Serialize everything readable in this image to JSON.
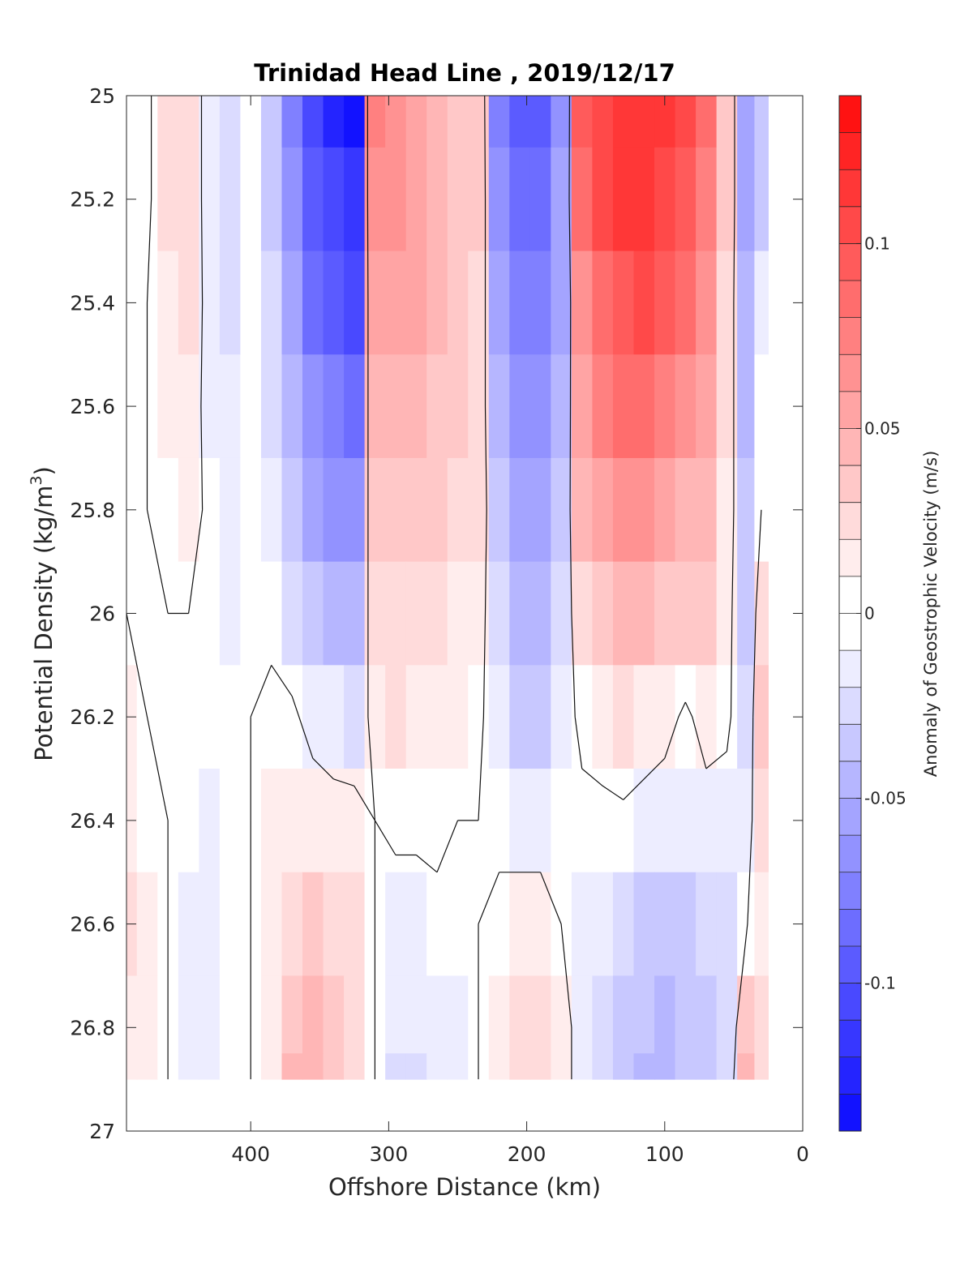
{
  "chart_data": {
    "type": "heatmap",
    "title": "Trinidad Head Line , 2019/12/17",
    "xlabel": "Offshore Distance (km)",
    "ylabel_main": "Potential Density (kg/m",
    "ylabel_sup": "3",
    "ylabel_close": ")",
    "x_axis_reversed": true,
    "xlim": [
      490,
      0
    ],
    "ylim": [
      27,
      25
    ],
    "y_axis_reversed": true,
    "x_ticks": [
      "400",
      "300",
      "200",
      "100",
      "0"
    ],
    "x_tick_values": [
      400,
      300,
      200,
      100,
      0
    ],
    "y_ticks": [
      "25",
      "25.2",
      "25.4",
      "25.6",
      "25.8",
      "26",
      "26.2",
      "26.4",
      "26.6",
      "26.8",
      "27"
    ],
    "y_tick_values": [
      25,
      25.2,
      25.4,
      25.6,
      25.8,
      26,
      26.2,
      26.4,
      26.6,
      26.8,
      27
    ],
    "colorbar": {
      "label": "Anomaly of Geostrophic Velocity (m/s)",
      "range": [
        -0.14,
        0.14
      ],
      "step": 0.01,
      "ticks": [
        "0.1",
        "0.05",
        "0",
        "-0.05",
        "-0.1"
      ],
      "tick_values": [
        0.1,
        0.05,
        0,
        -0.05,
        -0.1
      ]
    },
    "zero_contour": true,
    "data_note_density_range": [
      25,
      26.9
    ],
    "x_stations_km": [
      490,
      475,
      460,
      445,
      430,
      415,
      400,
      385,
      370,
      355,
      340,
      325,
      310,
      295,
      280,
      265,
      250,
      235,
      220,
      205,
      190,
      175,
      160,
      145,
      130,
      115,
      100,
      85,
      70,
      55,
      40,
      30
    ],
    "density_levels": [
      25,
      25.2,
      25.4,
      25.6,
      25.8,
      26,
      26.2,
      26.4,
      26.6,
      26.8,
      26.9
    ],
    "values": [
      [
        0,
        -0.005,
        0.02,
        0.025,
        -0.015,
        -0.02,
        -0.005,
        -0.03,
        -0.07,
        -0.1,
        -0.12,
        -0.13,
        0.07,
        0.06,
        0.05,
        0.04,
        0.03,
        0.03,
        -0.07,
        -0.09,
        -0.09,
        -0.06,
        0.09,
        0.1,
        0.11,
        0.11,
        0.11,
        0.1,
        0.08,
        0.03,
        -0.05,
        -0.03
      ],
      [
        0,
        -0.005,
        0.02,
        0.025,
        -0.015,
        -0.02,
        -0.005,
        -0.03,
        -0.06,
        -0.09,
        -0.1,
        -0.11,
        0.06,
        0.06,
        0.05,
        0.04,
        0.03,
        0.03,
        -0.06,
        -0.08,
        -0.08,
        -0.05,
        0.08,
        0.1,
        0.11,
        0.11,
        0.1,
        0.09,
        0.07,
        0.03,
        -0.05,
        -0.03
      ],
      [
        0,
        0,
        0.015,
        0.02,
        -0.01,
        -0.02,
        -0.005,
        -0.025,
        -0.05,
        -0.08,
        -0.09,
        -0.1,
        0.05,
        0.05,
        0.05,
        0.04,
        0.03,
        0.025,
        -0.05,
        -0.07,
        -0.07,
        -0.05,
        0.06,
        0.08,
        0.09,
        0.1,
        0.09,
        0.08,
        0.06,
        0.02,
        -0.04,
        -0.01
      ],
      [
        0,
        0,
        0.01,
        0.015,
        -0.01,
        -0.015,
        -0.005,
        -0.02,
        -0.04,
        -0.06,
        -0.07,
        -0.08,
        0.04,
        0.04,
        0.04,
        0.035,
        0.03,
        0.02,
        -0.04,
        -0.06,
        -0.06,
        -0.04,
        0.05,
        0.07,
        0.08,
        0.08,
        0.07,
        0.06,
        0.05,
        0.02,
        -0.04,
        0
      ],
      [
        0,
        0,
        0.005,
        0.01,
        -0.005,
        -0.015,
        0,
        -0.01,
        -0.03,
        -0.05,
        -0.06,
        -0.06,
        0.03,
        0.03,
        0.03,
        0.03,
        0.02,
        0.02,
        -0.03,
        -0.05,
        -0.05,
        -0.03,
        0.04,
        0.05,
        0.06,
        0.06,
        0.05,
        0.04,
        0.04,
        0.015,
        -0.03,
        0
      ],
      [
        0,
        0,
        0,
        0,
        0,
        -0.01,
        0,
        -0.005,
        -0.02,
        -0.03,
        -0.04,
        -0.04,
        0.02,
        0.02,
        0.02,
        0.02,
        0.015,
        0.01,
        -0.02,
        -0.04,
        -0.04,
        -0.02,
        0.02,
        0.03,
        0.04,
        0.04,
        0.03,
        0.03,
        0.03,
        0.01,
        -0.03,
        0.02
      ],
      [
        0.01,
        0,
        0,
        0,
        0,
        0,
        0,
        0.005,
        0.005,
        -0.01,
        -0.015,
        -0.02,
        0.01,
        0.02,
        0.015,
        0.01,
        0.01,
        0.005,
        -0.015,
        -0.03,
        -0.03,
        -0.01,
        0.005,
        0.01,
        0.02,
        0.015,
        0.01,
        -0.005,
        0.01,
        0.005,
        -0.02,
        0.03
      ],
      [
        0.015,
        0.005,
        0,
        -0.005,
        -0.01,
        0,
        0,
        0.01,
        0.015,
        0.015,
        0.01,
        0.01,
        0,
        0.005,
        0.005,
        0.005,
        0,
        0,
        -0.005,
        -0.01,
        -0.01,
        -0.005,
        -0.005,
        -0.005,
        -0.005,
        -0.01,
        -0.015,
        -0.01,
        -0.01,
        -0.01,
        -0.01,
        0.02
      ],
      [
        0.02,
        0.01,
        0,
        -0.01,
        -0.015,
        0,
        0,
        0.01,
        0.025,
        0.03,
        0.025,
        0.02,
        0,
        -0.01,
        -0.01,
        -0.005,
        0,
        0,
        0.005,
        0.01,
        0.01,
        0,
        -0.01,
        -0.015,
        -0.02,
        -0.03,
        -0.035,
        -0.03,
        -0.025,
        -0.02,
        0,
        0.01
      ],
      [
        0.015,
        0.01,
        0,
        -0.01,
        -0.015,
        0,
        0,
        0.01,
        0.035,
        0.04,
        0.03,
        0.02,
        0,
        -0.015,
        -0.015,
        -0.01,
        -0.01,
        0,
        0.01,
        0.02,
        0.02,
        0.01,
        -0.01,
        -0.02,
        -0.03,
        -0.035,
        -0.04,
        -0.035,
        -0.03,
        -0.025,
        0.03,
        0.02
      ],
      [
        0.01,
        0.01,
        0,
        -0.01,
        -0.01,
        0,
        0,
        0.01,
        0.04,
        0.045,
        0.035,
        0.02,
        0,
        -0.02,
        -0.02,
        -0.015,
        -0.01,
        0,
        0.015,
        0.025,
        0.02,
        0.01,
        -0.01,
        -0.02,
        -0.03,
        -0.04,
        -0.04,
        -0.035,
        -0.03,
        -0.02,
        0.04,
        0.02
      ]
    ]
  }
}
